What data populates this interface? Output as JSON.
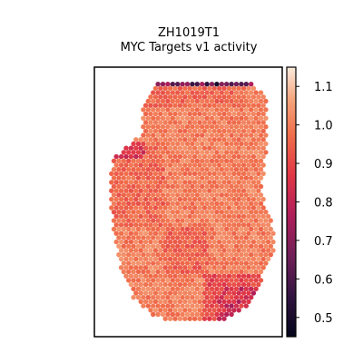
{
  "chart_data": {
    "type": "heatmap",
    "subtype": "spatial-hex-scatter",
    "title": "ZH1019T1",
    "subtitle": "MYC Targets v1 activity",
    "xlabel": "",
    "ylabel": "",
    "colormap": "rocket",
    "color_range": [
      0.45,
      1.15
    ],
    "colorbar_ticks": [
      {
        "value": 1.1,
        "label": "1.1"
      },
      {
        "value": 1.0,
        "label": "1.0"
      },
      {
        "value": 0.9,
        "label": "0.9"
      },
      {
        "value": 0.8,
        "label": "0.8"
      },
      {
        "value": 0.7,
        "label": "0.7"
      },
      {
        "value": 0.6,
        "label": "0.6"
      },
      {
        "value": 0.5,
        "label": "0.5"
      }
    ],
    "grid": false,
    "value_summary": {
      "bulk_range": [
        0.85,
        1.12
      ],
      "low_regions": [
        {
          "region": "top edge",
          "approx_value": 0.5
        },
        {
          "region": "left notch",
          "approx_value": 0.8
        },
        {
          "region": "bottom right",
          "approx_value": 0.75
        }
      ]
    }
  }
}
